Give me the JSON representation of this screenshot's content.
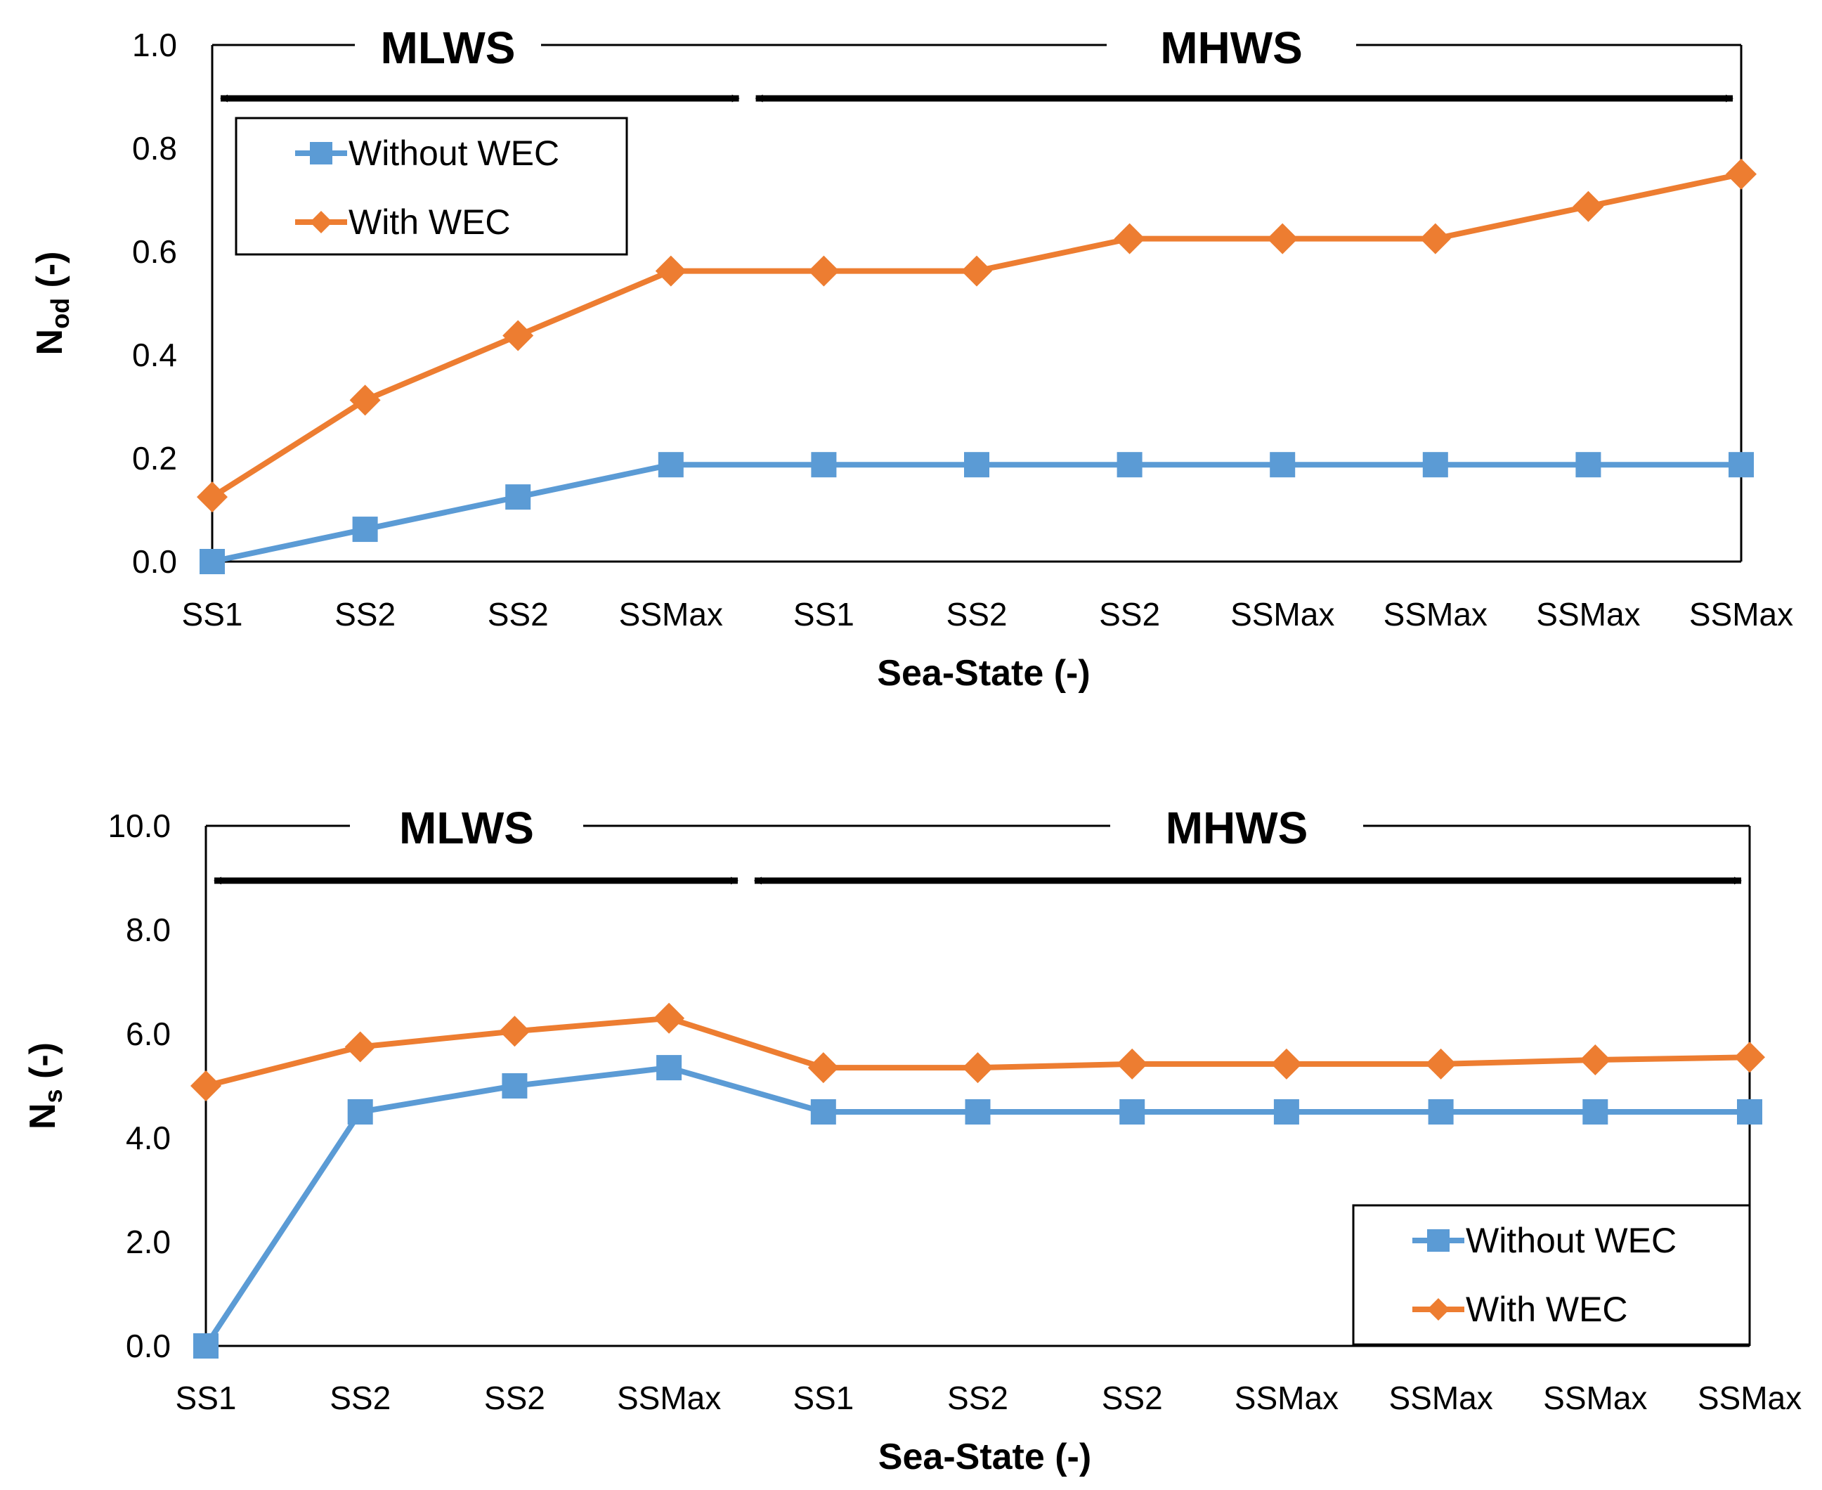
{
  "chart_data": [
    {
      "type": "line",
      "title": "",
      "xlabel": "Sea-State (-)",
      "ylabel_main": "N",
      "ylabel_sub": "od",
      "ylabel_tail": " (-)",
      "ylim": [
        0,
        1.0
      ],
      "yticks": [
        "0.0",
        "0.2",
        "0.4",
        "0.6",
        "0.8",
        "1.0"
      ],
      "ytick_values": [
        0,
        0.2,
        0.4,
        0.6,
        0.8,
        1.0
      ],
      "categories": [
        "SS1",
        "SS2",
        "SS2",
        "SSMax",
        "SS1",
        "SS2",
        "SS2",
        "SSMax",
        "SSMax",
        "SSMax",
        "SSMax"
      ],
      "regions": [
        {
          "label": "MLWS",
          "from_index": 0,
          "to_index": 3.5
        },
        {
          "label": "MHWS",
          "from_index": 3.5,
          "to_index": 10
        }
      ],
      "legend_position": "top-left",
      "series": [
        {
          "name": "Without WEC",
          "color": "#5B9BD5",
          "marker": "square",
          "values": [
            0.0,
            0.0625,
            0.125,
            0.1875,
            0.1875,
            0.1875,
            0.1875,
            0.1875,
            0.1875,
            0.1875,
            0.1875
          ]
        },
        {
          "name": "With WEC",
          "color": "#ED7D31",
          "marker": "diamond",
          "values": [
            0.125,
            0.3125,
            0.4375,
            0.5625,
            0.5625,
            0.5625,
            0.625,
            0.625,
            0.625,
            0.6875,
            0.75
          ]
        }
      ]
    },
    {
      "type": "line",
      "title": "",
      "xlabel": "Sea-State (-)",
      "ylabel_main": "N",
      "ylabel_sub": "s",
      "ylabel_tail": " (-)",
      "ylim": [
        0,
        10.0
      ],
      "yticks": [
        "0.0",
        "2.0",
        "4.0",
        "6.0",
        "8.0",
        "10.0"
      ],
      "ytick_values": [
        0,
        2,
        4,
        6,
        8,
        10
      ],
      "categories": [
        "SS1",
        "SS2",
        "SS2",
        "SSMax",
        "SS1",
        "SS2",
        "SS2",
        "SSMax",
        "SSMax",
        "SSMax",
        "SSMax"
      ],
      "regions": [
        {
          "label": "MLWS",
          "from_index": 0,
          "to_index": 3.5
        },
        {
          "label": "MHWS",
          "from_index": 3.5,
          "to_index": 10
        }
      ],
      "legend_position": "bottom-right",
      "series": [
        {
          "name": "Without WEC",
          "color": "#5B9BD5",
          "marker": "square",
          "values": [
            0.0,
            4.5,
            5.0,
            5.35,
            4.5,
            4.5,
            4.5,
            4.5,
            4.5,
            4.5,
            4.5
          ]
        },
        {
          "name": "With WEC",
          "color": "#ED7D31",
          "marker": "diamond",
          "values": [
            5.0,
            5.75,
            6.05,
            6.3,
            5.35,
            5.35,
            5.42,
            5.42,
            5.42,
            5.5,
            5.55
          ]
        }
      ]
    }
  ]
}
